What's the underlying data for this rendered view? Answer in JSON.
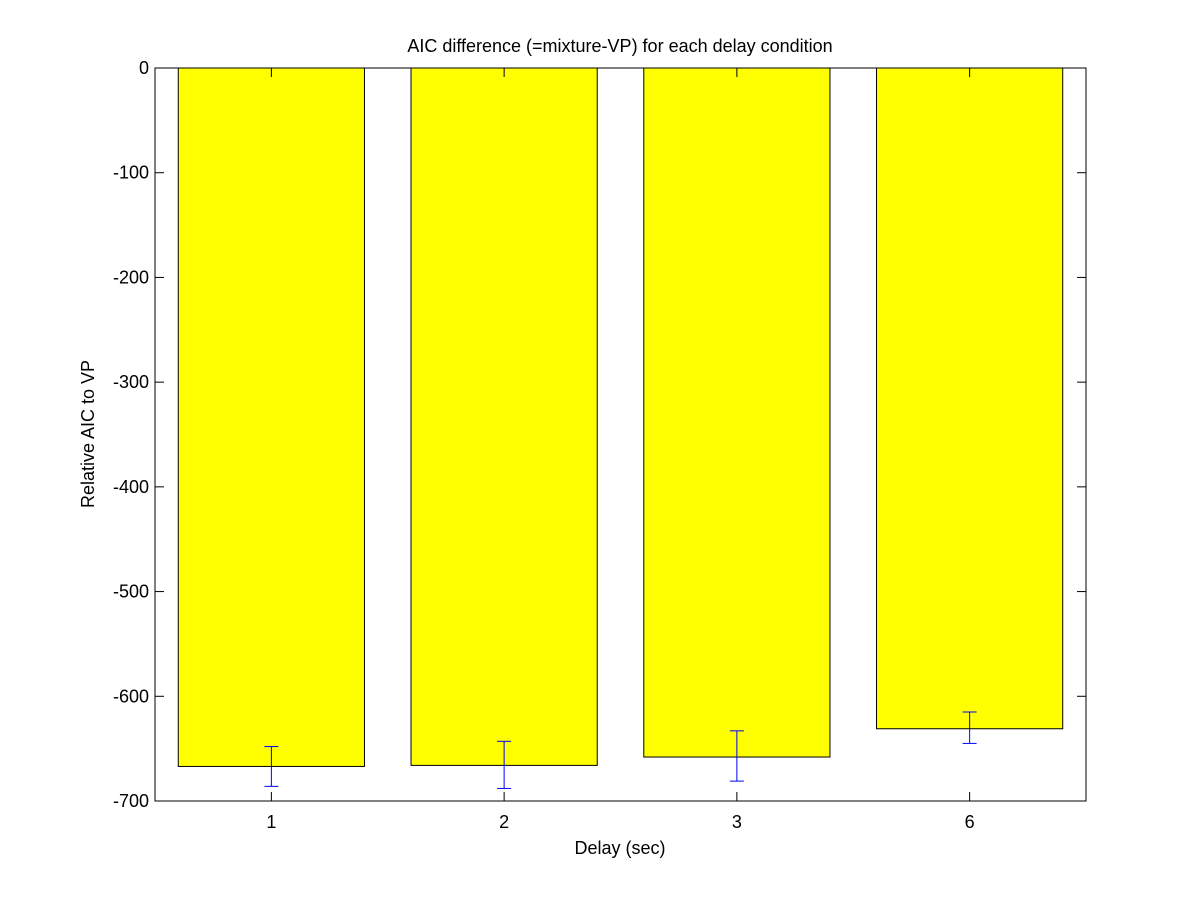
{
  "chart_data": {
    "type": "bar",
    "title": "AIC difference (=mixture-VP) for each delay condition",
    "xlabel": "Delay (sec)",
    "ylabel": "Relative AIC to VP",
    "categories": [
      "1",
      "2",
      "3",
      "6"
    ],
    "values": [
      -667,
      -666,
      -658,
      -631
    ],
    "error": [
      {
        "lower": -686,
        "upper": -648
      },
      {
        "lower": -688,
        "upper": -643
      },
      {
        "lower": -681,
        "upper": -633
      },
      {
        "lower": -645,
        "upper": -615
      }
    ],
    "ylim": [
      -700,
      0
    ],
    "yticks": [
      0,
      -100,
      -200,
      -300,
      -400,
      -500,
      -600,
      -700
    ],
    "ytick_labels": [
      "0",
      "-100",
      "-200",
      "-300",
      "-400",
      "-500",
      "-600",
      "-700"
    ],
    "grid": false,
    "colors": {
      "bar_fill": "#ffff00",
      "bar_edge": "#000000",
      "error_bar": "#0000ff",
      "axes": "#000000"
    }
  }
}
